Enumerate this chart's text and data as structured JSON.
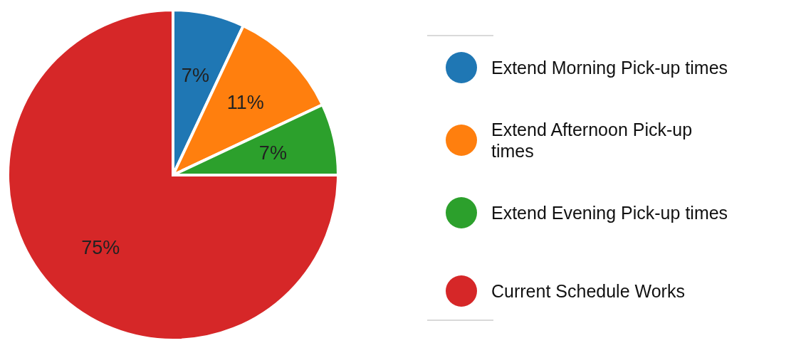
{
  "chart_data": {
    "type": "pie",
    "categories": [
      "Extend Morning Pick-up times",
      "Extend Afternoon Pick-up times",
      "Extend Evening Pick-up times",
      "Current Schedule Works"
    ],
    "values": [
      7,
      11,
      7,
      75
    ],
    "colors": [
      "#1f77b4",
      "#ff7f0e",
      "#2ca02c",
      "#d62728"
    ],
    "value_labels": [
      "7%",
      "11%",
      "7%",
      "75%"
    ],
    "legend": "right"
  }
}
